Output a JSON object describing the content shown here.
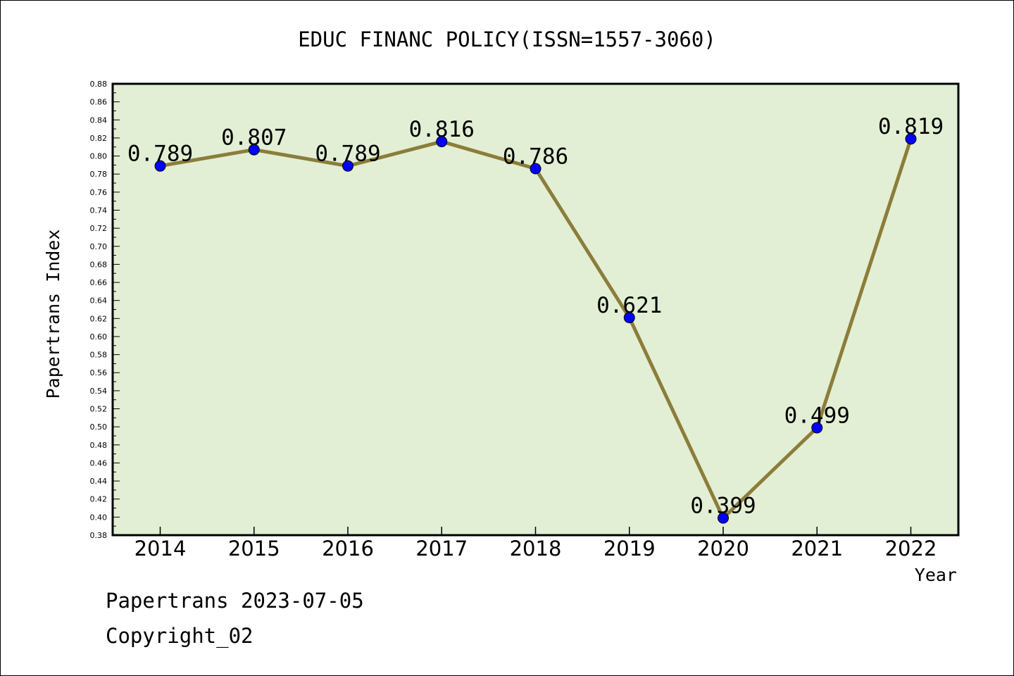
{
  "chart_data": {
    "type": "line",
    "title": "EDUC FINANC POLICY(ISSN=1557-3060)",
    "xlabel": "Year",
    "ylabel": "Papertrans Index",
    "categories": [
      "2014",
      "2015",
      "2016",
      "2017",
      "2018",
      "2019",
      "2020",
      "2021",
      "2022"
    ],
    "values": [
      0.789,
      0.807,
      0.789,
      0.816,
      0.786,
      0.621,
      0.399,
      0.499,
      0.819
    ],
    "data_labels": [
      "0.789",
      "0.807",
      "0.789",
      "0.816",
      "0.786",
      "0.621",
      "0.399",
      "0.499",
      "0.819"
    ],
    "ylim": [
      0.38,
      0.88
    ],
    "yticks": [
      "0.38",
      "0.40",
      "0.42",
      "0.44",
      "0.46",
      "0.48",
      "0.50",
      "0.52",
      "0.54",
      "0.56",
      "0.58",
      "0.60",
      "0.62",
      "0.64",
      "0.66",
      "0.68",
      "0.70",
      "0.72",
      "0.74",
      "0.76",
      "0.78",
      "0.80",
      "0.82",
      "0.84",
      "0.86",
      "0.88"
    ],
    "grid": false,
    "colors": {
      "plot_background": "#e2efd4",
      "line": "#8b7d3a",
      "marker": "#0000ff"
    }
  },
  "footer": {
    "source": "Papertrans 2023-07-05",
    "copyright": "Copyright_02"
  }
}
